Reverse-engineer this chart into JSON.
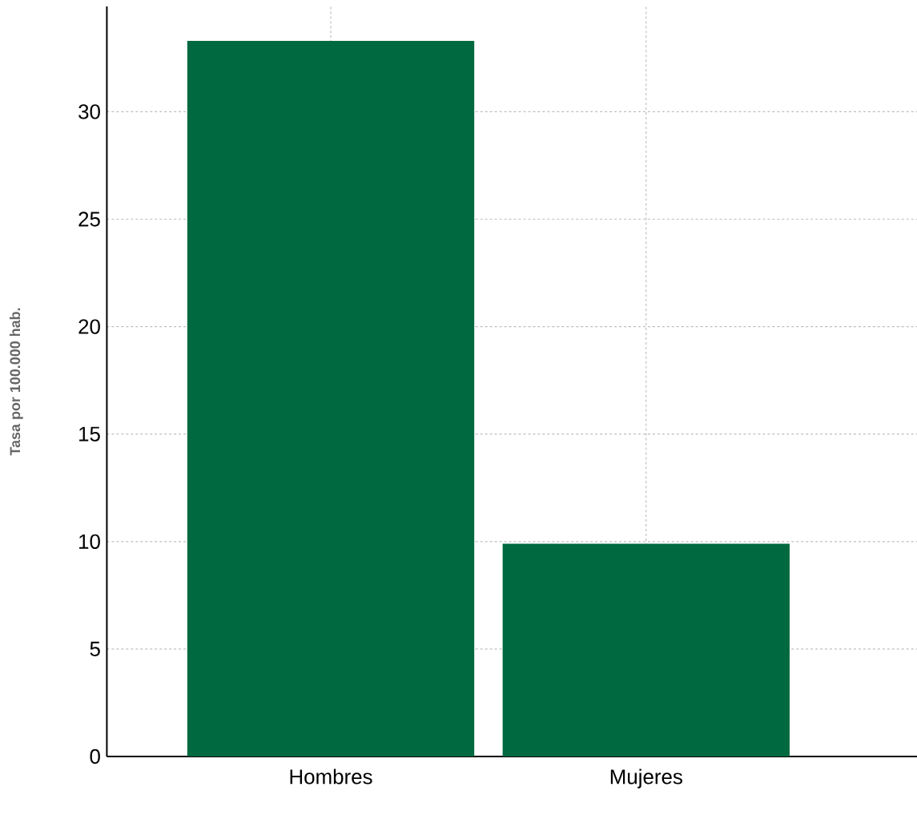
{
  "chart_data": {
    "type": "bar",
    "ylabel": "Tasa por 100.000 hab.",
    "categories": [
      "Hombres",
      "Mujeres"
    ],
    "values": [
      33.3,
      9.9
    ],
    "color": "#006940",
    "ylim": [
      0,
      34.9
    ],
    "yticks": [
      0,
      5,
      10,
      15,
      20,
      25,
      30
    ],
    "grid": true
  }
}
